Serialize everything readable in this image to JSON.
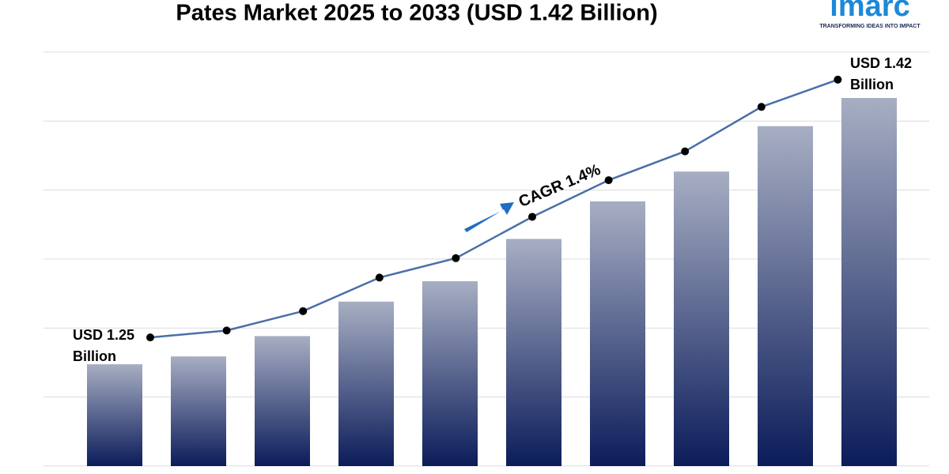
{
  "chart_data": {
    "type": "bar-line",
    "title": "Pates Market 2025 to 2033 (USD 1.42 Billion)",
    "values": [
      1.25,
      1.255,
      1.268,
      1.29,
      1.303,
      1.33,
      1.354,
      1.373,
      1.402,
      1.42
    ],
    "ylim": [
      1.185,
      1.42
    ],
    "bar_color_top": "#a7aec3",
    "bar_color_bottom": "#0b1c5a",
    "line_color": "#4a6fa8",
    "marker_color": "#000000",
    "start_label": [
      "USD 1.25",
      "Billion"
    ],
    "end_label": [
      "USD 1.42",
      "Billion"
    ],
    "cagr_label": "CAGR 1.4%",
    "arrow_color": "#1f6fbf"
  },
  "logo": {
    "name": "imarc",
    "tagline": "TRANSFORMING IDEAS INTO IMPACT",
    "color": "#1e88d8"
  }
}
